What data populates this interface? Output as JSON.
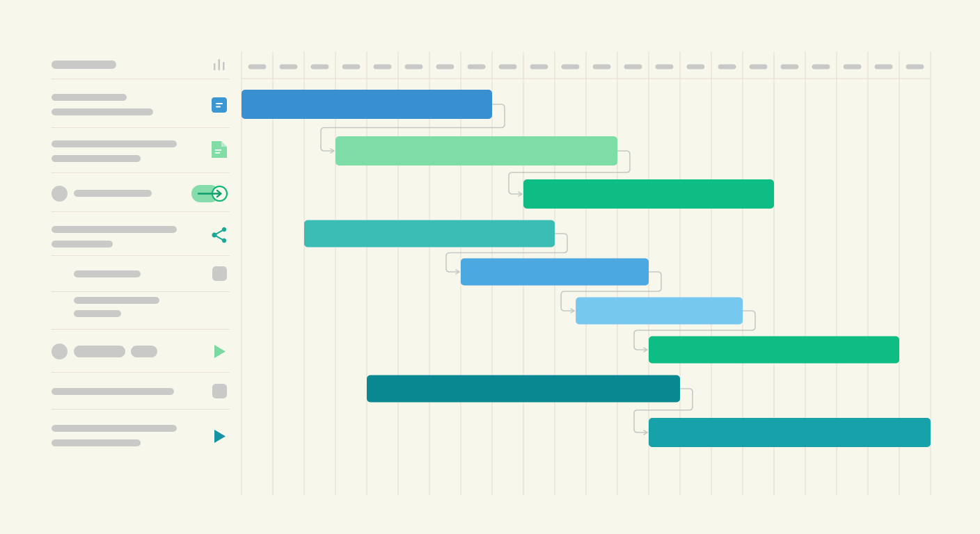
{
  "colors": {
    "background": "#f7f7ec",
    "gridline": "#eadfd3",
    "skeleton": "#c9cac7",
    "connector": "#c6c8c4",
    "blue": "#3990d0",
    "light_green": "#7edda6",
    "green": "#0dbd83",
    "teal": "#3bbdb6",
    "sky_blue": "#4ba8e0",
    "light_blue": "#76c8ee",
    "dark_teal": "#0a8892",
    "medium_teal": "#17a1a9"
  },
  "header": {
    "icon": "bar-chart-icon",
    "column_count": 22
  },
  "rows": [
    {
      "name": "task-row-1",
      "icon": "note-icon",
      "icon_color": "#3a97d4",
      "interactable": true
    },
    {
      "name": "task-row-2",
      "icon": "document-icon",
      "icon_color": "#82dca6",
      "interactable": false
    },
    {
      "name": "task-row-3",
      "icon": "toggle-arrow-icon",
      "icon_color": "#13b57a",
      "interactable": true
    },
    {
      "name": "task-row-4",
      "icon": "share-icon",
      "icon_color": "#1aa894",
      "interactable": true
    },
    {
      "name": "task-row-5",
      "icon": "square-icon",
      "icon_color": "#c9cac7",
      "interactable": false
    },
    {
      "name": "task-row-6",
      "icon": "none",
      "icon_color": "",
      "interactable": false
    },
    {
      "name": "task-row-7",
      "icon": "play-icon",
      "icon_color": "#7ad9a0",
      "interactable": true
    },
    {
      "name": "task-row-8",
      "icon": "square-icon",
      "icon_color": "#c9cac7",
      "interactable": false
    },
    {
      "name": "task-row-9",
      "icon": "play-icon",
      "icon_color": "#1694a3",
      "interactable": true
    }
  ],
  "tasks": [
    {
      "id": "bar-1",
      "start": 0,
      "end": 8,
      "color_key": "blue"
    },
    {
      "id": "bar-2",
      "start": 3,
      "end": 12,
      "color_key": "light_green"
    },
    {
      "id": "bar-3",
      "start": 9,
      "end": 17,
      "color_key": "green"
    },
    {
      "id": "bar-4",
      "start": 2,
      "end": 10,
      "color_key": "teal"
    },
    {
      "id": "bar-5",
      "start": 7,
      "end": 13,
      "color_key": "sky_blue"
    },
    {
      "id": "bar-6",
      "start": 10.67,
      "end": 16,
      "color_key": "light_blue"
    },
    {
      "id": "bar-7",
      "start": 13,
      "end": 21,
      "color_key": "green"
    },
    {
      "id": "bar-8",
      "start": 4,
      "end": 14,
      "color_key": "dark_teal"
    },
    {
      "id": "bar-9",
      "start": 13,
      "end": 22,
      "color_key": "medium_teal"
    }
  ],
  "dependencies": [
    {
      "from": 0,
      "to": 1
    },
    {
      "from": 1,
      "to": 2
    },
    {
      "from": 3,
      "to": 4
    },
    {
      "from": 4,
      "to": 5
    },
    {
      "from": 5,
      "to": 6
    },
    {
      "from": 7,
      "to": 8
    }
  ]
}
